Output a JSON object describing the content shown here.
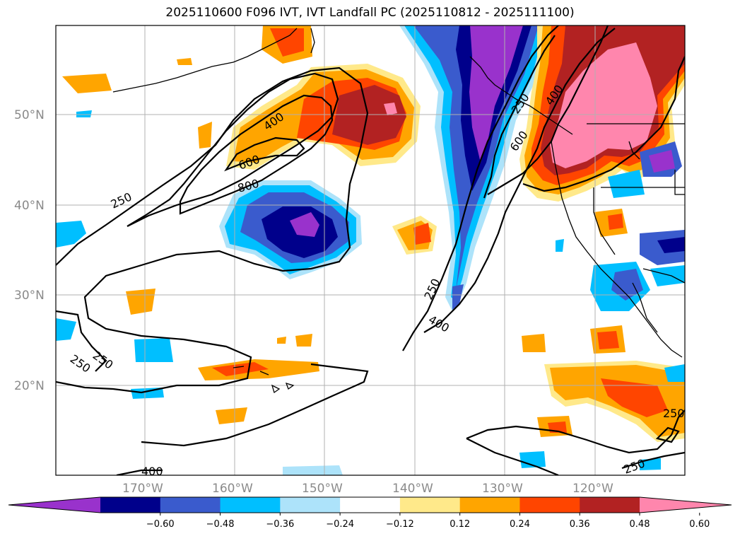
{
  "title": "2025110600 F096 IVT, IVT Landfall PC (2025110812 - 2025111100)",
  "axes": {
    "lon_labels": [
      "170°W",
      "160°W",
      "150°W",
      "140°W",
      "130°W",
      "120°W"
    ],
    "lat_labels": [
      "50°N",
      "40°N",
      "30°N",
      "20°N"
    ]
  },
  "contour_labels": [
    "250",
    "400",
    "600",
    "800",
    "250",
    "250",
    "250",
    "400",
    "400",
    "600",
    "250",
    "400",
    "250",
    "250"
  ],
  "colorbar": {
    "tick_labels": [
      "−0.60",
      "−0.48",
      "−0.36",
      "−0.24",
      "−0.12",
      "0.12",
      "0.24",
      "0.36",
      "0.48",
      "0.60"
    ],
    "colors": [
      "#9932cc",
      "#00008b",
      "#3a5bcd",
      "#00bfff",
      "#ade3fa",
      "#ffffff",
      "#ffe98a",
      "#ffa500",
      "#ff4500",
      "#b22222",
      "#ff86ad"
    ]
  },
  "legend_colors": {
    "neg_strong": "#9932cc",
    "neg_dark": "#00008b",
    "neg_mid": "#3a5bcd",
    "neg_light": "#00bfff",
    "neg_pale": "#ade3fa",
    "pos_pale": "#ffe98a",
    "pos_light": "#ffa500",
    "pos_mid": "#ff4500",
    "pos_dark": "#b22222",
    "pos_strong": "#ff86ad"
  }
}
